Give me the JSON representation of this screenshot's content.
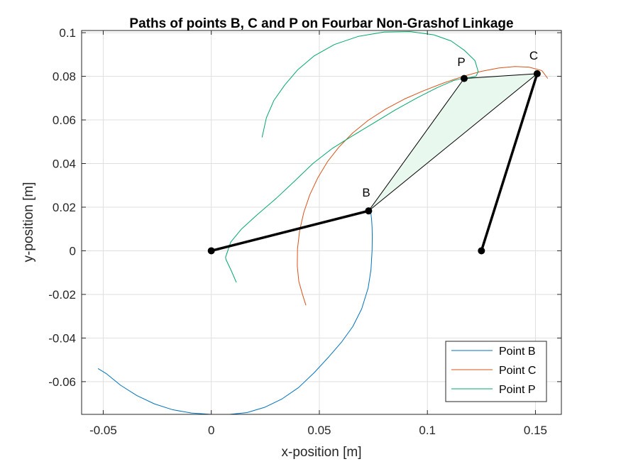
{
  "chart_data": {
    "type": "line",
    "title": "Paths of points B, C and P on Fourbar Non-Grashof Linkage",
    "xlabel": "x-position [m]",
    "ylabel": "y-position [m]",
    "xlim": [
      -0.06,
      0.162
    ],
    "ylim": [
      -0.075,
      0.101
    ],
    "xticks": [
      -0.05,
      0,
      0.05,
      0.1,
      0.15
    ],
    "xtick_labels": [
      "-0.05",
      "0",
      "0.05",
      "0.1",
      "0.15"
    ],
    "yticks": [
      -0.06,
      -0.04,
      -0.02,
      0,
      0.02,
      0.04,
      0.06,
      0.08,
      0.1
    ],
    "ytick_labels": [
      "-0.06",
      "-0.04",
      "-0.02",
      "0",
      "0.02",
      "0.04",
      "0.06",
      "0.08",
      "0.1"
    ],
    "grid": true,
    "legend_position": "bottom-right",
    "series": [
      {
        "name": "Point B",
        "color": "#0072BD",
        "x": [
          0.0738,
          0.0742,
          0.0744,
          0.0745,
          0.0744,
          0.0739,
          0.0726,
          0.0696,
          0.0655,
          0.0604,
          0.0544,
          0.0477,
          0.0404,
          0.0326,
          0.0246,
          0.0165,
          0.0085,
          0.0,
          -0.0092,
          -0.0178,
          -0.0263,
          -0.0344,
          -0.0419,
          -0.0486,
          -0.0524,
          -0.0524
        ],
        "y": [
          0.0178,
          0.0141,
          0.0108,
          0.0064,
          0.0,
          -0.0086,
          -0.017,
          -0.0266,
          -0.0347,
          -0.0417,
          -0.0486,
          -0.0558,
          -0.0627,
          -0.068,
          -0.0718,
          -0.0742,
          -0.075,
          -0.075,
          -0.0744,
          -0.0729,
          -0.0702,
          -0.0664,
          -0.0617,
          -0.0563,
          -0.054,
          -0.054
        ]
      },
      {
        "name": "Point C",
        "color": "#D95319",
        "x": [
          0.0438,
          0.0422,
          0.0405,
          0.0398,
          0.0399,
          0.0409,
          0.0428,
          0.0456,
          0.0493,
          0.0538,
          0.0592,
          0.0654,
          0.0726,
          0.0807,
          0.0894,
          0.0985,
          0.1077,
          0.1166,
          0.125,
          0.133,
          0.1405,
          0.147,
          0.153,
          0.1557
        ],
        "y": [
          -0.025,
          -0.02,
          -0.014,
          -0.007,
          0.001,
          0.0093,
          0.0176,
          0.0257,
          0.0335,
          0.0409,
          0.0477,
          0.054,
          0.0598,
          0.065,
          0.0696,
          0.0735,
          0.077,
          0.08,
          0.0823,
          0.0838,
          0.0845,
          0.0842,
          0.0826,
          0.079
        ]
      },
      {
        "name": "Point P",
        "color": "#00A86B",
        "x": [
          0.0116,
          0.0092,
          0.0068,
          0.0066,
          0.009,
          0.014,
          0.0212,
          0.03,
          0.0386,
          0.047,
          0.0558,
          0.065,
          0.075,
          0.085,
          0.095,
          0.1045,
          0.112,
          0.117,
          0.12,
          0.1225,
          0.1235,
          0.122,
          0.117,
          0.111,
          0.103,
          0.092,
          0.08,
          0.068,
          0.057,
          0.0475,
          0.04,
          0.034,
          0.029,
          0.0255,
          0.0235
        ],
        "y": [
          -0.0145,
          -0.009,
          -0.004,
          -0.003,
          0.004,
          0.01,
          0.0165,
          0.024,
          0.032,
          0.04,
          0.0468,
          0.0525,
          0.0585,
          0.0645,
          0.07,
          0.0748,
          0.078,
          0.0793,
          0.0795,
          0.08,
          0.0822,
          0.0872,
          0.092,
          0.0962,
          0.099,
          0.1005,
          0.1003,
          0.0983,
          0.0946,
          0.0893,
          0.083,
          0.076,
          0.069,
          0.061,
          0.052
        ]
      }
    ],
    "linkage": {
      "ground_A": {
        "x": 0,
        "y": 0
      },
      "ground_D": {
        "x": 0.125,
        "y": 0
      },
      "B": {
        "x": 0.0728,
        "y": 0.0183
      },
      "C": {
        "x": 0.1508,
        "y": 0.0812
      },
      "P": {
        "x": 0.117,
        "y": 0.079
      },
      "coupler_fill": "#E8F8EE",
      "labels": {
        "B": "B",
        "C": "C",
        "P": "P"
      }
    }
  }
}
